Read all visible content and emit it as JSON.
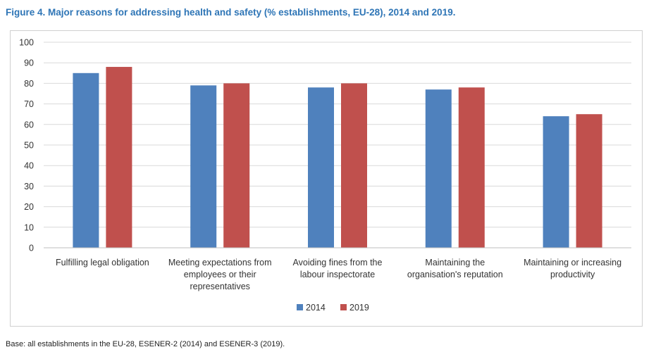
{
  "figure": {
    "title": "Figure 4. Major reasons for addressing health and safety (% establishments, EU-28), 2014 and 2019.",
    "note": "Base: all establishments in the EU-28, ESENER-2 (2014) and ESENER-3 (2019)."
  },
  "chart_data": {
    "type": "bar",
    "title": "",
    "xlabel": "",
    "ylabel": "",
    "ylim": [
      0,
      100
    ],
    "yticks": [
      0,
      10,
      20,
      30,
      40,
      50,
      60,
      70,
      80,
      90,
      100
    ],
    "grid": true,
    "legend_position": "bottom",
    "categories": [
      [
        "Fulfilling legal obligation"
      ],
      [
        "Meeting expectations from",
        "employees or their",
        "representatives"
      ],
      [
        "Avoiding fines from the",
        "labour inspectorate"
      ],
      [
        "Maintaining the",
        "organisation's reputation"
      ],
      [
        "Maintaining or increasing",
        "productivity"
      ]
    ],
    "series": [
      {
        "name": "2014",
        "color": "#4f81bd",
        "values": [
          85,
          79,
          78,
          77,
          64
        ]
      },
      {
        "name": "2019",
        "color": "#c0504d",
        "values": [
          88,
          80,
          80,
          78,
          65
        ]
      }
    ]
  }
}
